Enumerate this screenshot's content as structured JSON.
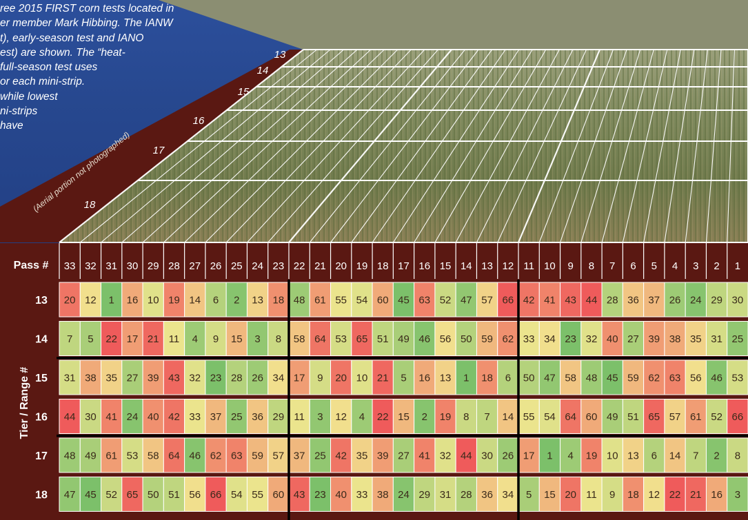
{
  "caption_lines": [
    "ree 2015 FIRST corn tests located in",
    "er member Mark Hibbing. The IANW",
    "t), early-season test and IANO",
    "est) are shown. The “heat-",
    "full-season test uses",
    "or each mini-strip.",
    "while lowest",
    "ni-strips",
    "have"
  ],
  "aerial_note": "(Aerial portion not photographed)",
  "aerial_tiers": [
    "13",
    "14",
    "15",
    "16",
    "17",
    "18"
  ],
  "colors": {
    "frame": "#5a1812",
    "divider": "#000000",
    "cell_text": "#3a2a1a",
    "header_text": "#ffffff",
    "scale_low": "#7cc06a",
    "scale_mid": "#f1e68f",
    "scale_high": "#ef5b5b"
  },
  "chart_data": {
    "type": "heatmap",
    "title": "",
    "xlabel": "Pass #",
    "ylabel": "Tier / Range #",
    "x": [
      "33",
      "32",
      "31",
      "30",
      "29",
      "28",
      "27",
      "26",
      "25",
      "24",
      "23",
      "22",
      "21",
      "20",
      "19",
      "18",
      "17",
      "16",
      "15",
      "14",
      "13",
      "12",
      "11",
      "10",
      "9",
      "8",
      "7",
      "6",
      "5",
      "4",
      "3",
      "2",
      "1"
    ],
    "y": [
      "13",
      "14",
      "15",
      "16",
      "17",
      "18"
    ],
    "values": [
      [
        20,
        12,
        1,
        16,
        10,
        19,
        14,
        6,
        2,
        13,
        18,
        48,
        61,
        55,
        54,
        60,
        45,
        63,
        52,
        47,
        57,
        66,
        42,
        41,
        43,
        44,
        28,
        36,
        37,
        26,
        24,
        29,
        30
      ],
      [
        7,
        5,
        22,
        17,
        21,
        11,
        4,
        9,
        15,
        3,
        8,
        58,
        64,
        53,
        65,
        51,
        49,
        46,
        56,
        50,
        59,
        62,
        33,
        34,
        23,
        32,
        40,
        27,
        39,
        38,
        35,
        31,
        25
      ],
      [
        31,
        38,
        35,
        27,
        39,
        43,
        32,
        23,
        28,
        26,
        34,
        17,
        9,
        20,
        10,
        21,
        5,
        16,
        13,
        1,
        18,
        6,
        50,
        47,
        58,
        48,
        45,
        59,
        62,
        63,
        56,
        46,
        53
      ],
      [
        44,
        30,
        41,
        24,
        40,
        42,
        33,
        37,
        25,
        36,
        29,
        11,
        3,
        12,
        4,
        22,
        15,
        2,
        19,
        8,
        7,
        14,
        55,
        54,
        64,
        60,
        49,
        51,
        65,
        57,
        61,
        52,
        66
      ],
      [
        48,
        49,
        61,
        53,
        58,
        64,
        46,
        62,
        63,
        59,
        57,
        37,
        25,
        42,
        35,
        39,
        27,
        41,
        32,
        44,
        30,
        26,
        17,
        1,
        4,
        19,
        10,
        13,
        6,
        14,
        7,
        2,
        8
      ],
      [
        47,
        45,
        52,
        65,
        50,
        51,
        56,
        66,
        54,
        55,
        60,
        43,
        23,
        40,
        33,
        38,
        24,
        29,
        31,
        28,
        36,
        34,
        5,
        15,
        20,
        11,
        9,
        18,
        12,
        22,
        21,
        16,
        3
      ]
    ],
    "colorscale": "green (best) - yellow - red (worst), per test block"
  }
}
